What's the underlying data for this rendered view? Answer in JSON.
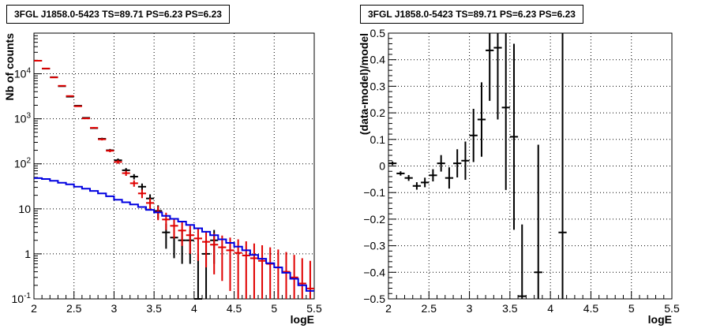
{
  "chart_data": [
    {
      "type": "scatter",
      "title": "3FGL J1858.0-5423 TS=89.71 PS=6.23 PS=6.23",
      "xlabel": "logE",
      "ylabel": "Nb of counts",
      "xlim": [
        2,
        5.5
      ],
      "ylim": [
        0.1,
        80000
      ],
      "yscale": "log",
      "grid": true,
      "xticks": [
        "2",
        "2.5",
        "3",
        "3.5",
        "4",
        "4.5",
        "5",
        "5.5"
      ],
      "yticks": [
        "10^{-1}",
        "1",
        "10",
        "10^{2}",
        "10^{3}",
        "10^{4}"
      ],
      "bin_width": 0.1,
      "series": [
        {
          "color": "#000000",
          "kind": "data-with-errors",
          "points": [
            {
              "x": 2.05,
              "y": 19500,
              "lo": 19360,
              "hi": 19640
            },
            {
              "x": 2.15,
              "y": 13000,
              "lo": 12886,
              "hi": 13114
            },
            {
              "x": 2.25,
              "y": 8400,
              "lo": 8308,
              "hi": 8492
            },
            {
              "x": 2.35,
              "y": 5300,
              "lo": 5227,
              "hi": 5373
            },
            {
              "x": 2.45,
              "y": 3100,
              "lo": 3044,
              "hi": 3156
            },
            {
              "x": 2.55,
              "y": 1950,
              "lo": 1906,
              "hi": 1994
            },
            {
              "x": 2.65,
              "y": 1050,
              "lo": 1018,
              "hi": 1082
            },
            {
              "x": 2.75,
              "y": 620,
              "lo": 595,
              "hi": 645
            },
            {
              "x": 2.85,
              "y": 360,
              "lo": 341,
              "hi": 379
            },
            {
              "x": 2.95,
              "y": 200,
              "lo": 186,
              "hi": 214
            },
            {
              "x": 3.05,
              "y": 120,
              "lo": 109,
              "hi": 131
            },
            {
              "x": 3.15,
              "y": 72,
              "lo": 63.5,
              "hi": 80.5
            },
            {
              "x": 3.25,
              "y": 52,
              "lo": 45,
              "hi": 59
            },
            {
              "x": 3.35,
              "y": 31,
              "lo": 25.5,
              "hi": 36.5
            },
            {
              "x": 3.45,
              "y": 17,
              "lo": 13,
              "hi": 21
            },
            {
              "x": 3.55,
              "y": 9,
              "lo": 6,
              "hi": 12
            },
            {
              "x": 3.65,
              "y": 3,
              "lo": 1.3,
              "hi": 4.7
            },
            {
              "x": 3.75,
              "y": 2.3,
              "lo": 0.8,
              "hi": 3.8
            },
            {
              "x": 3.85,
              "y": 2,
              "lo": 0.6,
              "hi": 3.4
            },
            {
              "x": 3.95,
              "y": 2,
              "lo": 0.6,
              "hi": 3.4
            },
            {
              "x": 4.05,
              "y": 0.1,
              "lo": 0.1,
              "hi": 1.0
            },
            {
              "x": 4.15,
              "y": 1,
              "lo": 0.1,
              "hi": 2.0
            },
            {
              "x": 4.25,
              "y": 2,
              "lo": 0.6,
              "hi": 3.4
            }
          ]
        },
        {
          "color": "#e00000",
          "kind": "model-with-errors",
          "points": [
            {
              "x": 2.05,
              "y": 19500,
              "lo": 19360,
              "hi": 19640
            },
            {
              "x": 2.15,
              "y": 13100,
              "lo": 12986,
              "hi": 13214
            },
            {
              "x": 2.25,
              "y": 8300,
              "lo": 8209,
              "hi": 8391
            },
            {
              "x": 2.35,
              "y": 5400,
              "lo": 5327,
              "hi": 5473
            },
            {
              "x": 2.45,
              "y": 3200,
              "lo": 3143,
              "hi": 3257
            },
            {
              "x": 2.55,
              "y": 1900,
              "lo": 1856,
              "hi": 1944
            },
            {
              "x": 2.65,
              "y": 1020,
              "lo": 988,
              "hi": 1052
            },
            {
              "x": 2.75,
              "y": 630,
              "lo": 605,
              "hi": 655
            },
            {
              "x": 2.85,
              "y": 350,
              "lo": 331,
              "hi": 369
            },
            {
              "x": 2.95,
              "y": 195,
              "lo": 181,
              "hi": 209
            },
            {
              "x": 3.05,
              "y": 110,
              "lo": 99.5,
              "hi": 120.5
            },
            {
              "x": 3.15,
              "y": 62,
              "lo": 54,
              "hi": 70
            },
            {
              "x": 3.25,
              "y": 37,
              "lo": 31,
              "hi": 43
            },
            {
              "x": 3.35,
              "y": 22,
              "lo": 17.3,
              "hi": 26.7
            },
            {
              "x": 3.45,
              "y": 13.5,
              "lo": 9.8,
              "hi": 17.2
            },
            {
              "x": 3.55,
              "y": 8.5,
              "lo": 5.6,
              "hi": 11.4
            },
            {
              "x": 3.65,
              "y": 5.8,
              "lo": 3.4,
              "hi": 8.2
            },
            {
              "x": 3.75,
              "y": 4.2,
              "lo": 2.2,
              "hi": 6.2
            },
            {
              "x": 3.85,
              "y": 3.3,
              "lo": 1.5,
              "hi": 5.1
            },
            {
              "x": 3.95,
              "y": 2.6,
              "lo": 1.0,
              "hi": 4.2
            },
            {
              "x": 4.05,
              "y": 2.2,
              "lo": 0.7,
              "hi": 3.7
            },
            {
              "x": 4.15,
              "y": 1.85,
              "lo": 0.5,
              "hi": 3.2
            },
            {
              "x": 4.25,
              "y": 1.6,
              "lo": 0.35,
              "hi": 2.85
            },
            {
              "x": 4.35,
              "y": 1.4,
              "lo": 0.25,
              "hi": 2.55
            },
            {
              "x": 4.45,
              "y": 1.2,
              "lo": 0.15,
              "hi": 2.3
            },
            {
              "x": 4.55,
              "y": 1.05,
              "lo": 0.1,
              "hi": 2.1
            },
            {
              "x": 4.65,
              "y": 0.92,
              "lo": 0.1,
              "hi": 1.9
            },
            {
              "x": 4.75,
              "y": 0.8,
              "lo": 0.1,
              "hi": 1.7
            },
            {
              "x": 4.85,
              "y": 0.7,
              "lo": 0.1,
              "hi": 1.55
            },
            {
              "x": 4.95,
              "y": 0.6,
              "lo": 0.1,
              "hi": 1.4
            },
            {
              "x": 5.05,
              "y": 0.5,
              "lo": 0.1,
              "hi": 1.25
            },
            {
              "x": 5.15,
              "y": 0.4,
              "lo": 0.1,
              "hi": 1.1
            },
            {
              "x": 5.25,
              "y": 0.3,
              "lo": 0.1,
              "hi": 0.95
            },
            {
              "x": 5.35,
              "y": 0.22,
              "lo": 0.1,
              "hi": 0.8
            },
            {
              "x": 5.45,
              "y": 0.17,
              "lo": 0.1,
              "hi": 0.7
            }
          ]
        },
        {
          "color": "#0000e0",
          "kind": "step-histogram",
          "points": [
            {
              "x": 2.05,
              "y": 48
            },
            {
              "x": 2.15,
              "y": 46
            },
            {
              "x": 2.25,
              "y": 42
            },
            {
              "x": 2.35,
              "y": 38
            },
            {
              "x": 2.45,
              "y": 35
            },
            {
              "x": 2.55,
              "y": 31
            },
            {
              "x": 2.65,
              "y": 28
            },
            {
              "x": 2.75,
              "y": 25
            },
            {
              "x": 2.85,
              "y": 22
            },
            {
              "x": 2.95,
              "y": 19
            },
            {
              "x": 3.05,
              "y": 16
            },
            {
              "x": 3.15,
              "y": 14
            },
            {
              "x": 3.25,
              "y": 12.5
            },
            {
              "x": 3.35,
              "y": 11
            },
            {
              "x": 3.45,
              "y": 9.5
            },
            {
              "x": 3.55,
              "y": 8.3
            },
            {
              "x": 3.65,
              "y": 7
            },
            {
              "x": 3.75,
              "y": 6
            },
            {
              "x": 3.85,
              "y": 5.2
            },
            {
              "x": 3.95,
              "y": 4.4
            },
            {
              "x": 4.05,
              "y": 3.7
            },
            {
              "x": 4.15,
              "y": 3.1
            },
            {
              "x": 4.25,
              "y": 2.6
            },
            {
              "x": 4.35,
              "y": 2.1
            },
            {
              "x": 4.45,
              "y": 1.75
            },
            {
              "x": 4.55,
              "y": 1.45
            },
            {
              "x": 4.65,
              "y": 1.2
            },
            {
              "x": 4.75,
              "y": 0.95
            },
            {
              "x": 4.85,
              "y": 0.78
            },
            {
              "x": 4.95,
              "y": 0.62
            },
            {
              "x": 5.05,
              "y": 0.5
            },
            {
              "x": 5.15,
              "y": 0.38
            },
            {
              "x": 5.25,
              "y": 0.28
            },
            {
              "x": 5.35,
              "y": 0.2
            },
            {
              "x": 5.45,
              "y": 0.15
            }
          ]
        }
      ]
    },
    {
      "type": "scatter",
      "title": "3FGL J1858.0-5423 TS=89.71 PS=6.23 PS=6.23",
      "xlabel": "logE",
      "ylabel": "(data-model)/model",
      "xlim": [
        2,
        5.5
      ],
      "ylim": [
        -0.5,
        0.5
      ],
      "yscale": "linear",
      "grid": true,
      "xticks": [
        "2",
        "2.5",
        "3",
        "3.5",
        "4",
        "4.5",
        "5",
        "5.5"
      ],
      "yticks": [
        "−0.5",
        "−0.4",
        "−0.3",
        "−0.2",
        "−0.1",
        "0",
        "0.1",
        "0.2",
        "0.3",
        "0.4",
        "0.5"
      ],
      "bin_width": 0.1,
      "series": [
        {
          "color": "#000000",
          "kind": "residuals-with-errors",
          "points": [
            {
              "x": 2.05,
              "y": 0.01,
              "err": 0.007
            },
            {
              "x": 2.15,
              "y": -0.028,
              "err": 0.008
            },
            {
              "x": 2.25,
              "y": -0.045,
              "err": 0.011
            },
            {
              "x": 2.35,
              "y": -0.075,
              "err": 0.014
            },
            {
              "x": 2.45,
              "y": -0.062,
              "err": 0.018
            },
            {
              "x": 2.55,
              "y": -0.035,
              "err": 0.023
            },
            {
              "x": 2.65,
              "y": 0.01,
              "err": 0.031
            },
            {
              "x": 2.75,
              "y": -0.045,
              "err": 0.04
            },
            {
              "x": 2.85,
              "y": 0.01,
              "err": 0.053
            },
            {
              "x": 2.95,
              "y": 0.02,
              "err": 0.072
            },
            {
              "x": 3.05,
              "y": 0.115,
              "err": 0.1
            },
            {
              "x": 3.15,
              "y": 0.175,
              "err": 0.14
            },
            {
              "x": 3.25,
              "y": 0.435,
              "err": 0.19
            },
            {
              "x": 3.35,
              "y": 0.445,
              "err": 0.27
            },
            {
              "x": 3.45,
              "y": 0.22,
              "err": 0.31
            },
            {
              "x": 3.55,
              "y": 0.11,
              "err": 0.35
            },
            {
              "x": 3.65,
              "y": -0.49,
              "err": 0.27
            },
            {
              "x": 3.85,
              "y": -0.4,
              "err": 0.48
            },
            {
              "x": 4.15,
              "y": -0.25,
              "err": 1.0
            }
          ]
        }
      ]
    }
  ]
}
